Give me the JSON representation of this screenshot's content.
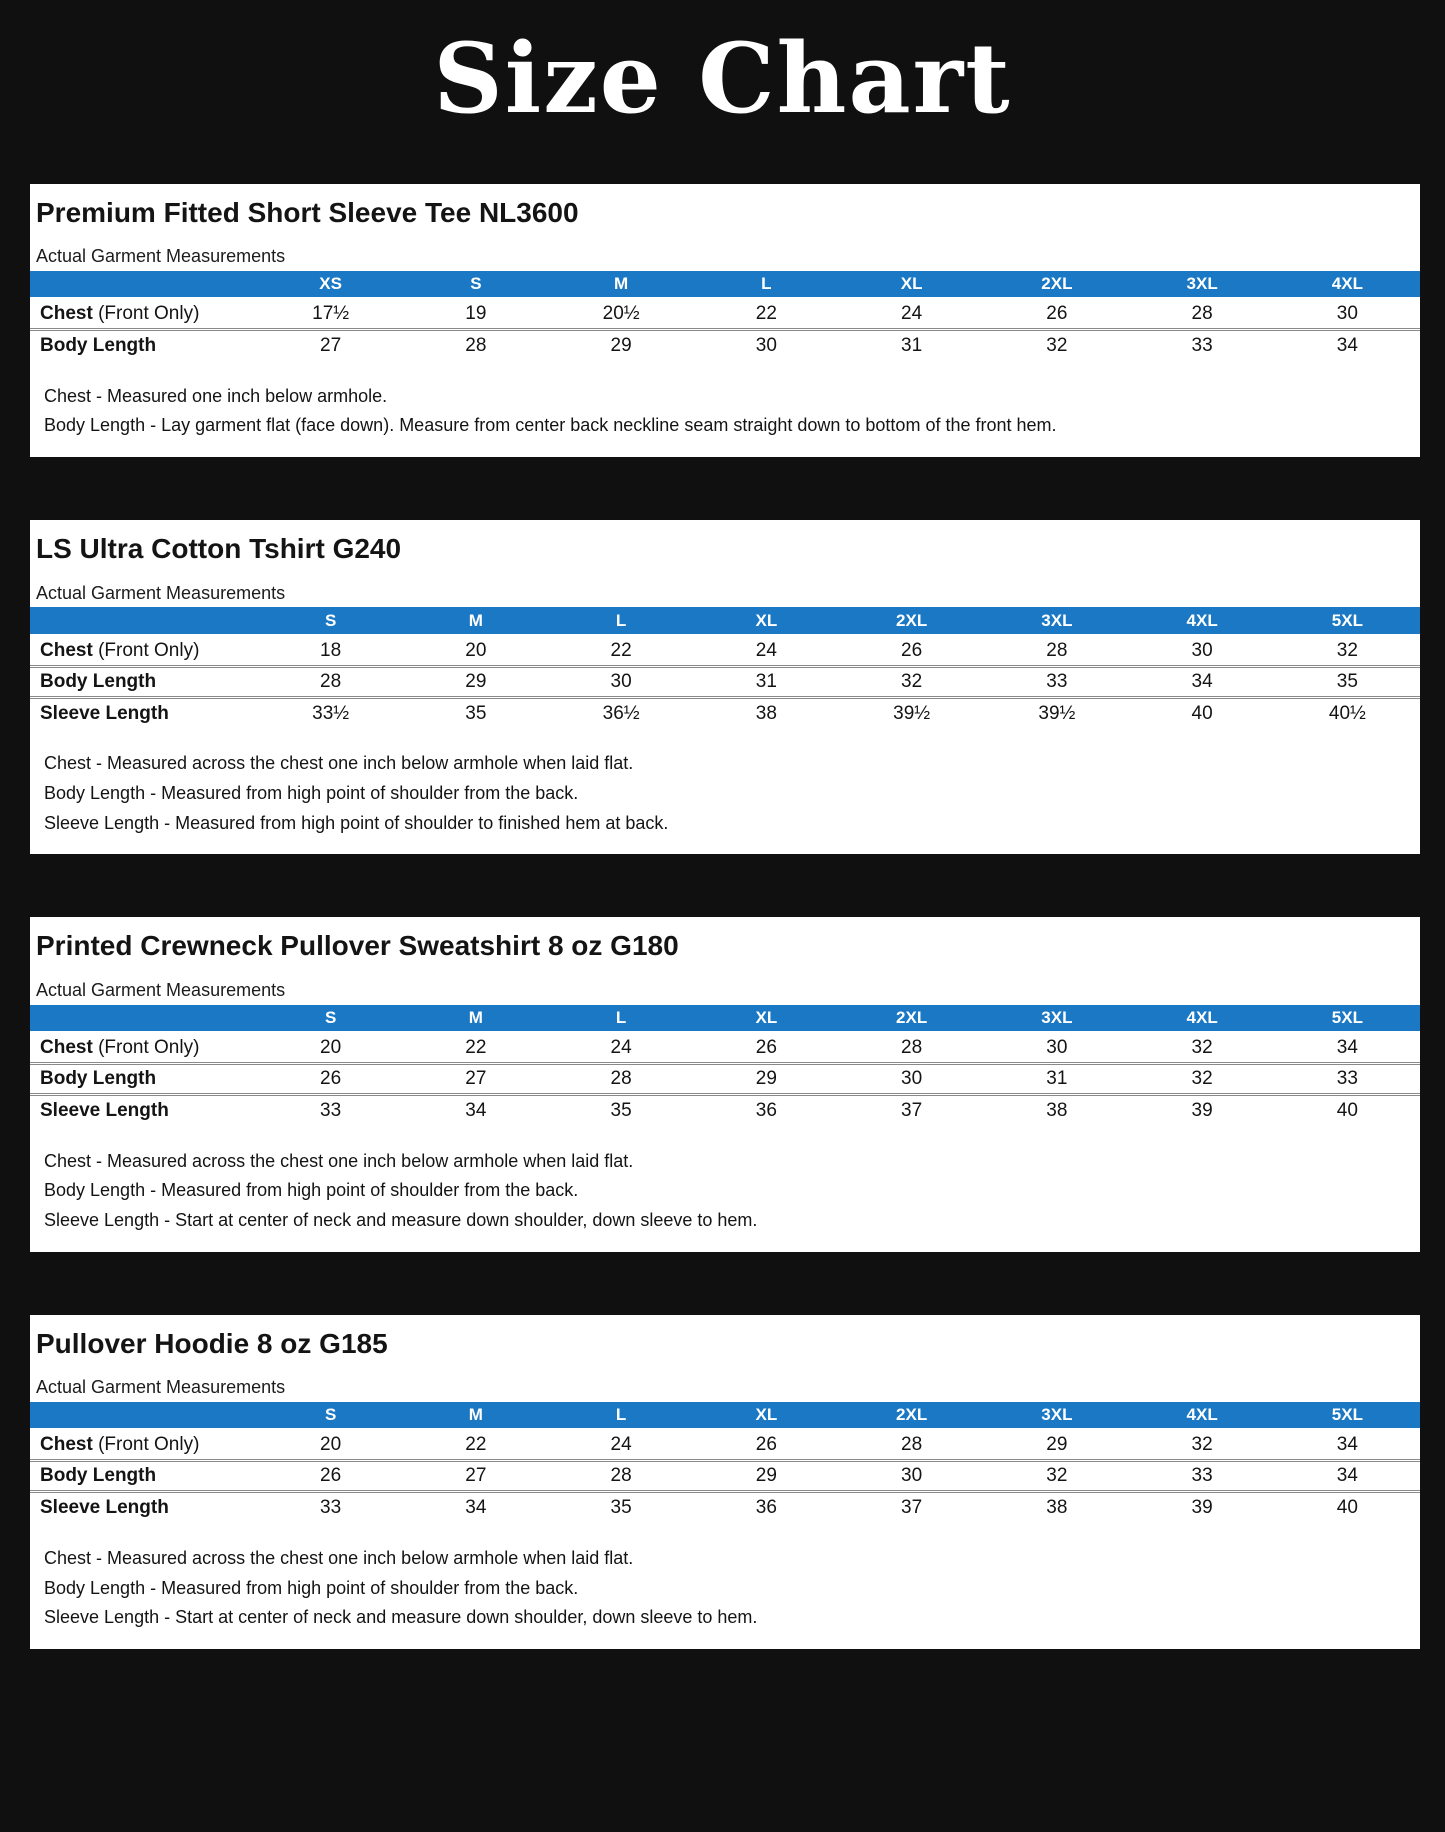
{
  "page_title": "Size Chart",
  "colors": {
    "page_background": "#101010",
    "panel_background": "#ffffff",
    "table_header_background": "#1b78c4",
    "table_header_text": "#ffffff",
    "body_text": "#141414"
  },
  "tables": [
    {
      "title": "Premium Fitted Short Sleeve Tee NL3600",
      "subtitle": "Actual Garment Measurements",
      "sizes": [
        "XS",
        "S",
        "M",
        "L",
        "XL",
        "2XL",
        "3XL",
        "4XL"
      ],
      "rows": [
        {
          "label": "Chest",
          "suffix": " (Front Only)",
          "values": [
            "17½",
            "19",
            "20½",
            "22",
            "24",
            "26",
            "28",
            "30"
          ]
        },
        {
          "label": "Body Length",
          "suffix": "",
          "values": [
            "27",
            "28",
            "29",
            "30",
            "31",
            "32",
            "33",
            "34"
          ]
        }
      ],
      "notes": [
        "Chest - Measured one inch below armhole.",
        "Body Length - Lay garment flat (face down). Measure from center back neckline seam straight down to bottom of the front hem."
      ]
    },
    {
      "title": "LS Ultra Cotton Tshirt G240",
      "subtitle": "Actual Garment Measurements",
      "sizes": [
        "S",
        "M",
        "L",
        "XL",
        "2XL",
        "3XL",
        "4XL",
        "5XL"
      ],
      "rows": [
        {
          "label": "Chest",
          "suffix": " (Front Only)",
          "values": [
            "18",
            "20",
            "22",
            "24",
            "26",
            "28",
            "30",
            "32"
          ]
        },
        {
          "label": "Body Length",
          "suffix": "",
          "values": [
            "28",
            "29",
            "30",
            "31",
            "32",
            "33",
            "34",
            "35"
          ]
        },
        {
          "label": "Sleeve Length",
          "suffix": "",
          "values": [
            "33½",
            "35",
            "36½",
            "38",
            "39½",
            "39½",
            "40",
            "40½"
          ]
        }
      ],
      "notes": [
        "Chest - Measured across the chest one inch below armhole when laid flat.",
        "Body Length - Measured from high point of shoulder from the back.",
        "Sleeve Length - Measured from high point of shoulder to finished hem at back."
      ]
    },
    {
      "title": "Printed Crewneck Pullover Sweatshirt 8 oz G180",
      "subtitle": "Actual Garment Measurements",
      "sizes": [
        "S",
        "M",
        "L",
        "XL",
        "2XL",
        "3XL",
        "4XL",
        "5XL"
      ],
      "rows": [
        {
          "label": "Chest",
          "suffix": " (Front Only)",
          "values": [
            "20",
            "22",
            "24",
            "26",
            "28",
            "30",
            "32",
            "34"
          ]
        },
        {
          "label": "Body Length",
          "suffix": "",
          "values": [
            "26",
            "27",
            "28",
            "29",
            "30",
            "31",
            "32",
            "33"
          ]
        },
        {
          "label": "Sleeve Length",
          "suffix": "",
          "values": [
            "33",
            "34",
            "35",
            "36",
            "37",
            "38",
            "39",
            "40"
          ]
        }
      ],
      "notes": [
        "Chest - Measured across the chest one inch below armhole when laid flat.",
        "Body Length - Measured from high point of shoulder from the back.",
        "Sleeve Length - Start at center of neck and measure down shoulder, down sleeve to hem."
      ]
    },
    {
      "title": "Pullover Hoodie 8 oz G185",
      "subtitle": "Actual Garment Measurements",
      "sizes": [
        "S",
        "M",
        "L",
        "XL",
        "2XL",
        "3XL",
        "4XL",
        "5XL"
      ],
      "rows": [
        {
          "label": "Chest",
          "suffix": " (Front Only)",
          "values": [
            "20",
            "22",
            "24",
            "26",
            "28",
            "29",
            "32",
            "34"
          ]
        },
        {
          "label": "Body Length",
          "suffix": "",
          "values": [
            "26",
            "27",
            "28",
            "29",
            "30",
            "32",
            "33",
            "34"
          ]
        },
        {
          "label": "Sleeve Length",
          "suffix": "",
          "values": [
            "33",
            "34",
            "35",
            "36",
            "37",
            "38",
            "39",
            "40"
          ]
        }
      ],
      "notes": [
        "Chest - Measured across the chest one inch below armhole when laid flat.",
        "Body Length - Measured from high point of shoulder from the back.",
        "Sleeve Length - Start at center of neck and measure down shoulder, down sleeve to hem."
      ]
    }
  ]
}
